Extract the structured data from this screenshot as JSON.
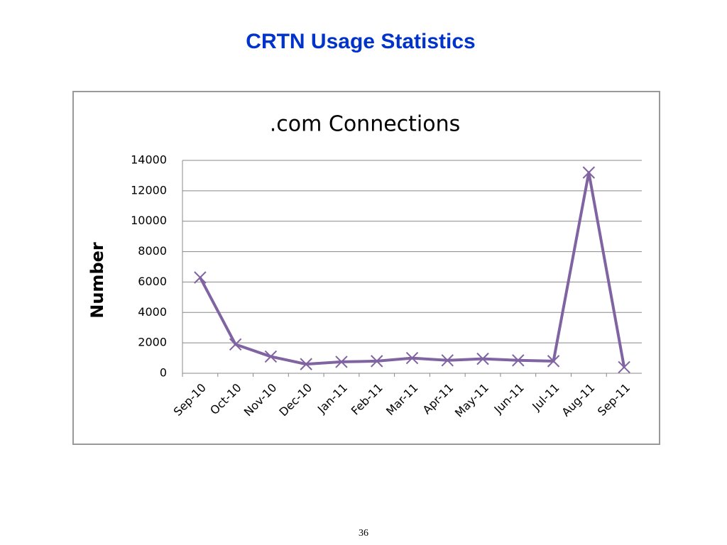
{
  "title": "CRTN Usage Statistics",
  "page_number": "36",
  "chart_data": {
    "type": "line",
    "title": ".com Connections",
    "y_label": "Number",
    "categories": [
      "Sep-10",
      "Oct-10",
      "Nov-10",
      "Dec-10",
      "Jan-11",
      "Feb-11",
      "Mar-11",
      "Apr-11",
      "May-11",
      "Jun-11",
      "Jul-11",
      "Aug-11",
      "Sep-11"
    ],
    "values": [
      6300,
      1900,
      1100,
      600,
      750,
      800,
      1000,
      850,
      950,
      850,
      800,
      13200,
      400
    ],
    "color": "#8064a2",
    "ylim": [
      0,
      14000
    ],
    "yticks": [
      0,
      2000,
      4000,
      6000,
      8000,
      10000,
      12000,
      14000
    ],
    "grid": true
  }
}
